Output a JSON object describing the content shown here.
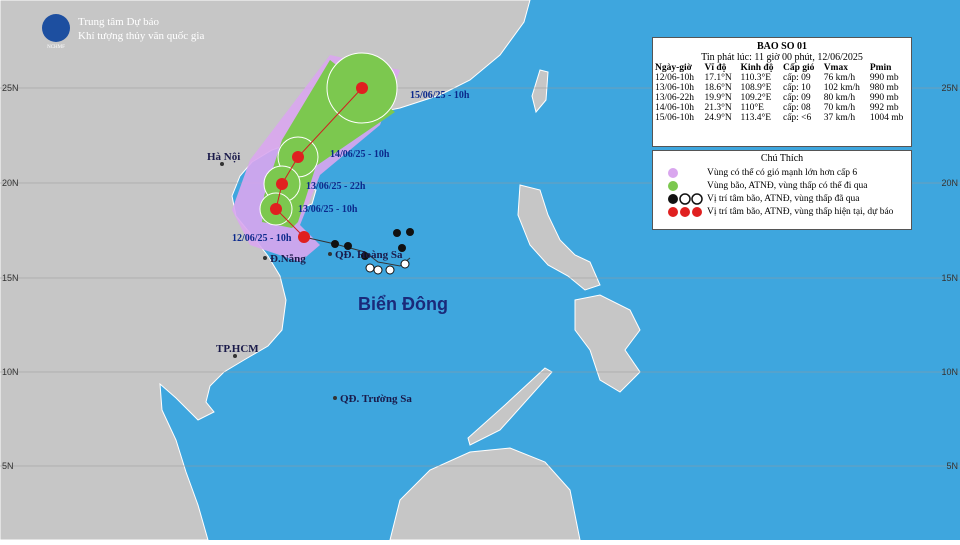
{
  "header": {
    "logo": "NCHMF",
    "line1": "Trung tâm Dự báo",
    "line2": "Khí tượng thủy văn quốc gia"
  },
  "latitude_labels": [
    "25N",
    "20N",
    "15N",
    "10N",
    "5N"
  ],
  "places": [
    "Hà Nội",
    "Đ.Nẵng",
    "QĐ. Hoàng Sa",
    "TP.HCM",
    "QĐ. Trường Sa"
  ],
  "sea_label": "Biển Đông",
  "track_labels": [
    "15/06/25 - 10h",
    "14/06/25 - 10h",
    "13/06/25 - 22h",
    "13/06/25 - 10h",
    "12/06/25 - 10h"
  ],
  "bulletin": {
    "title": "BAO SO 01",
    "issued": "Tin phát lúc: 11 giờ 00 phút, 12/06/2025",
    "columns": [
      "Ngày-giờ",
      "Vĩ độ",
      "Kinh độ",
      "Cấp gió",
      "Vmax",
      "Pmin"
    ],
    "rows": [
      [
        "12/06-10h",
        "17.1°N",
        "110.3°E",
        "cấp: 09",
        "76 km/h",
        "990 mb"
      ],
      [
        "13/06-10h",
        "18.6°N",
        "108.9°E",
        "cấp: 10",
        "102 km/h",
        "980 mb"
      ],
      [
        "13/06-22h",
        "19.9°N",
        "109.2°E",
        "cấp: 09",
        "80 km/h",
        "990 mb"
      ],
      [
        "14/06-10h",
        "21.3°N",
        "110°E",
        "cấp: 08",
        "70 km/h",
        "992 mb"
      ],
      [
        "15/06-10h",
        "24.9°N",
        "113.4°E",
        "cấp: <6",
        "37 km/h",
        "1004 mb"
      ]
    ]
  },
  "legend": {
    "title": "Chú Thích",
    "items": [
      "Vùng có thể có gió mạnh lớn hơn cấp 6",
      "Vùng bão, ATNĐ, vùng thấp có thể đi qua",
      "Vị trí tâm bão, ATNĐ, vùng thấp đã qua",
      "Vị trí tâm bão, ATNĐ, vùng thấp hiện tại, dự báo"
    ]
  }
}
